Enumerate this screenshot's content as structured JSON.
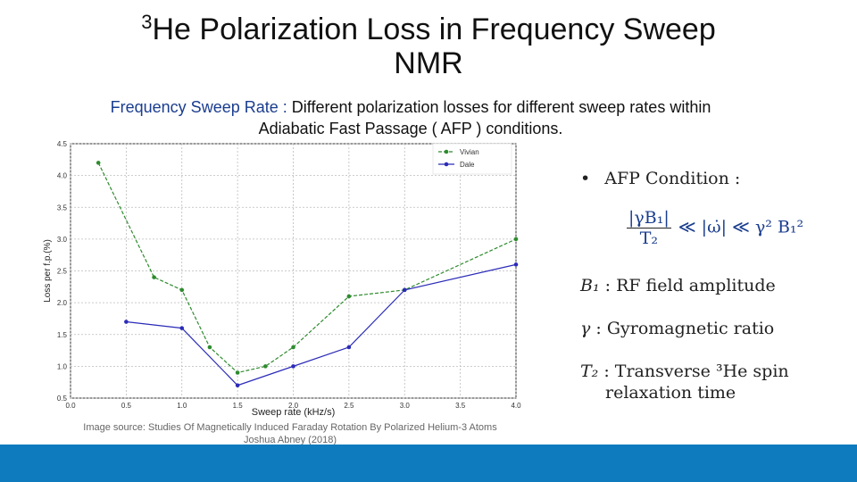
{
  "slide": {
    "title_sup": "3",
    "title_main": "He Polarization Loss in Frequency Sweep",
    "title_line2": "NMR",
    "subtitle_label": "Frequency Sweep Rate :",
    "subtitle_rest": "Different polarization losses for different sweep rates within",
    "subtitle_line2": "Adiabatic Fast Passage ( AFP ) conditions.",
    "source_line1": "Image source: Studies Of Magnetically Induced Faraday Rotation By Polarized Helium-3 Atoms",
    "source_line2": "Joshua Abney (2018)"
  },
  "formulas": {
    "bullet": "•",
    "afp_condition": "AFP Condition :",
    "frac_num": "|γB₁|",
    "frac_den": "T₂",
    "ineq_rest": "≪ |ω̇| ≪ γ² B₁²",
    "b1_symbol": "B₁",
    "b1_text": ": RF field amplitude",
    "gamma_symbol": "γ",
    "gamma_text": ": Gyromagnetic ratio",
    "t2_symbol": "T₂",
    "t2_text_1": ": Transverse ³He spin",
    "t2_text_2": "relaxation time"
  },
  "chart_data": {
    "type": "line",
    "xlabel": "Sweep rate (kHz/s)",
    "ylabel": "Loss per f.p.(%)",
    "xlim": [
      0,
      4
    ],
    "ylim": [
      0.5,
      4.5
    ],
    "xticks": [
      "0.0",
      "0.5",
      "1.0",
      "1.5",
      "2.0",
      "2.5",
      "3.0",
      "3.5",
      "4.0"
    ],
    "yticks": [
      "0.5",
      "1.0",
      "1.5",
      "2.0",
      "2.5",
      "3.0",
      "3.5",
      "4.0",
      "4.5"
    ],
    "grid": true,
    "legend_position": "top-right",
    "series": [
      {
        "name": "Vivian",
        "color": "#2e8b2e",
        "x": [
          0.25,
          0.75,
          1.0,
          1.25,
          1.5,
          1.75,
          2.0,
          2.5,
          3.0,
          4.0
        ],
        "y": [
          4.2,
          2.4,
          2.2,
          1.3,
          0.9,
          1.0,
          1.3,
          2.1,
          2.2,
          3.0
        ]
      },
      {
        "name": "Dale",
        "color": "#2b2bb8",
        "x": [
          0.5,
          1.0,
          1.5,
          2.0,
          2.5,
          3.0,
          4.0
        ],
        "y": [
          1.7,
          1.6,
          0.7,
          1.0,
          1.3,
          2.2,
          2.6
        ]
      }
    ]
  }
}
